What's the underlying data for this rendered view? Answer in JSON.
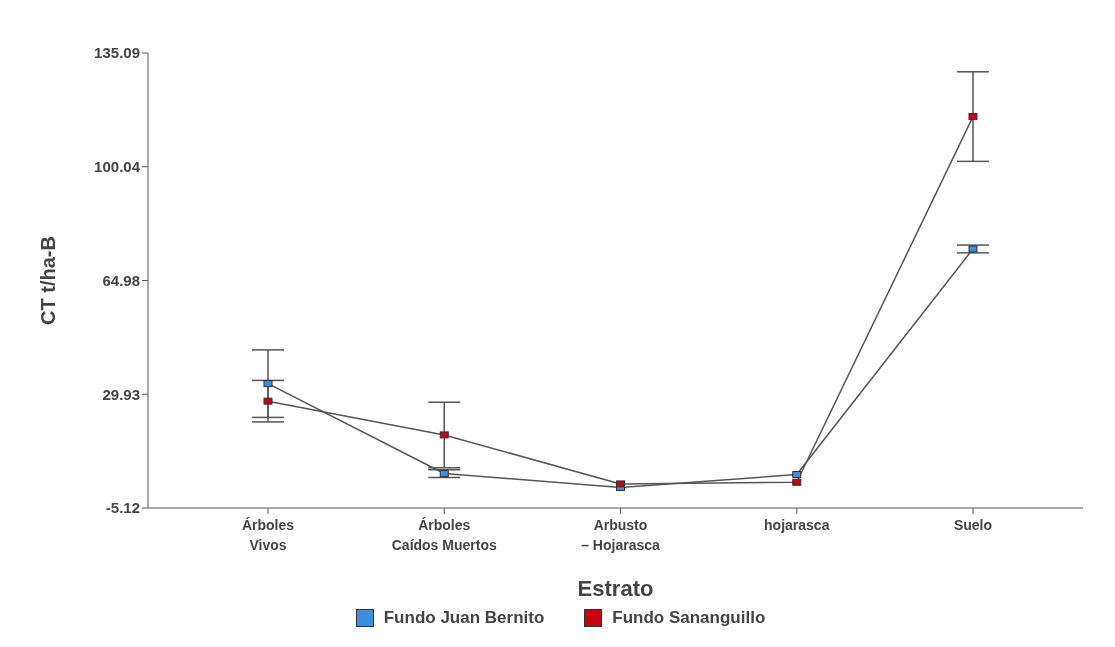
{
  "chart_data": {
    "type": "line",
    "xlabel": "Estrato",
    "ylabel": "CT t/ha-B",
    "categories": [
      "Árboles Vivos",
      "Árboles Caídos Muertos",
      "Arbusto – Hojarasca",
      "hojarasca",
      "Suelo"
    ],
    "series": [
      {
        "name": "Fundo Juan Bernito",
        "color": "#3b8ee0",
        "values": [
          33.2,
          5.5,
          1.2,
          5.2,
          74.7
        ],
        "errors": [
          10.4,
          1.2,
          null,
          null,
          1.2
        ]
      },
      {
        "name": "Fundo Sananguillo",
        "color": "#c8000f",
        "values": [
          27.8,
          17.4,
          2.3,
          2.8,
          115.5
        ],
        "errors": [
          6.4,
          10.1,
          null,
          null,
          13.8
        ]
      }
    ],
    "ylim": [
      -5.12,
      135.09
    ],
    "yticks": [
      -5.12,
      29.93,
      64.98,
      100.04,
      135.09
    ],
    "grid": false,
    "legend": "bottom",
    "marker": "square",
    "line_style": "solid"
  }
}
